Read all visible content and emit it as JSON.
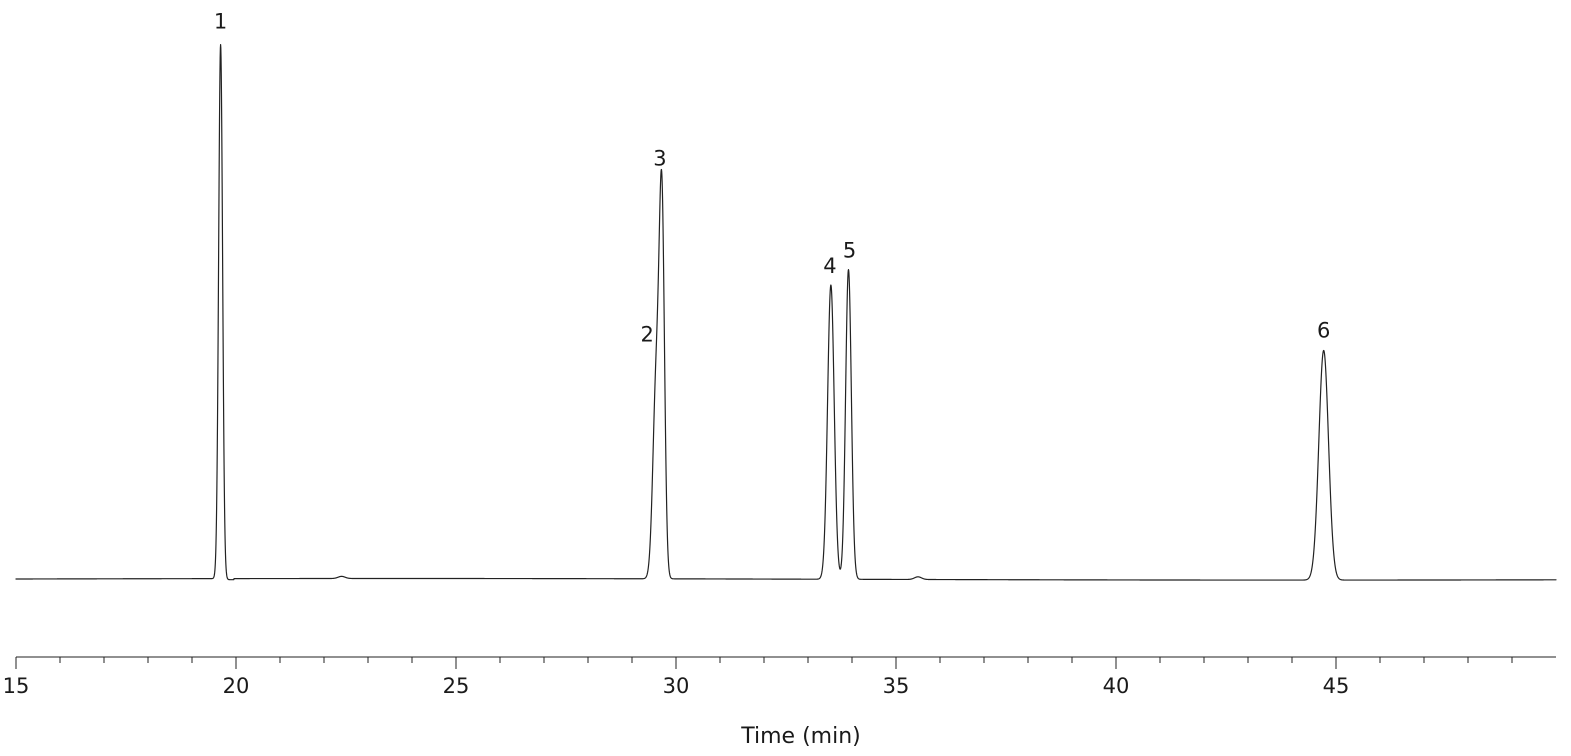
{
  "chart_data": {
    "type": "line",
    "title": "",
    "xlabel": "Time (min)",
    "ylabel": "",
    "xlim": [
      15,
      50
    ],
    "ylim": [
      0,
      1
    ],
    "grid": false,
    "x_ticks": [
      15,
      20,
      25,
      30,
      35,
      40,
      45
    ],
    "x_tick_labels": [
      "15",
      "20",
      "25",
      "30",
      "35",
      "40",
      "45"
    ],
    "minor_tick_step": 1,
    "baseline": 0.0,
    "peaks": [
      {
        "label": "1",
        "time": 19.65,
        "height": 1.0
      },
      {
        "label": "2",
        "time": 29.55,
        "height": 0.366
      },
      {
        "label": "3",
        "time": 29.68,
        "height": 0.674
      },
      {
        "label": "4",
        "time": 33.52,
        "height": 0.551
      },
      {
        "label": "5",
        "time": 33.92,
        "height": 0.58
      },
      {
        "label": "6",
        "time": 44.72,
        "height": 0.43
      }
    ],
    "minor_bumps": [
      {
        "time": 22.4,
        "height": 0.004
      },
      {
        "time": 35.5,
        "height": 0.005
      }
    ]
  }
}
